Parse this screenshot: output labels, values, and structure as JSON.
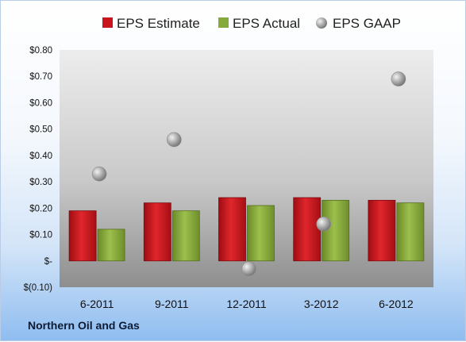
{
  "company": "Northern Oil and Gas",
  "colors": {
    "estimate": "#c8141a",
    "actual": "#86a93c",
    "gaap": "#a9a9a9",
    "plot_top": "#ededed",
    "plot_bottom": "#8e8e8e"
  },
  "chart_data": {
    "type": "bar",
    "categories": [
      "6-2011",
      "9-2011",
      "12-2011",
      "3-2012",
      "6-2012"
    ],
    "series": [
      {
        "name": "EPS Estimate",
        "type": "bar",
        "values": [
          0.19,
          0.22,
          0.24,
          0.24,
          0.23
        ]
      },
      {
        "name": "EPS Actual",
        "type": "bar",
        "values": [
          0.12,
          0.19,
          0.21,
          0.23,
          0.22
        ]
      },
      {
        "name": "EPS GAAP",
        "type": "scatter",
        "values": [
          0.33,
          0.46,
          -0.03,
          0.14,
          0.69
        ]
      }
    ],
    "yticks": [
      -0.1,
      0.0,
      0.1,
      0.2,
      0.3,
      0.4,
      0.5,
      0.6,
      0.7,
      0.8
    ],
    "ytick_labels": [
      "$(0.10)",
      "$-",
      "$0.10",
      "$0.20",
      "$0.30",
      "$0.40",
      "$0.50",
      "$0.60",
      "$0.70",
      "$0.80"
    ],
    "ylim": [
      -0.1,
      0.8
    ],
    "legend": "top",
    "grid": false
  }
}
